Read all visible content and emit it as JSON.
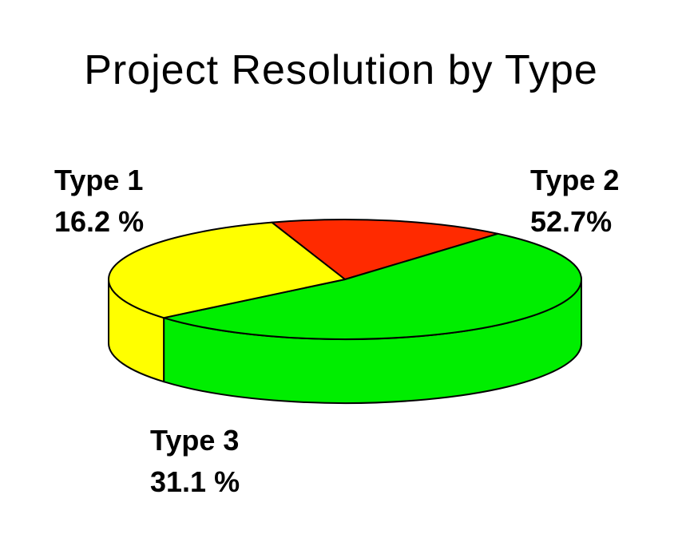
{
  "chart_data": {
    "type": "pie",
    "title": "Project Resolution by Type",
    "slices": [
      {
        "name": "Type 1",
        "value": 16.2,
        "value_label": "16.2 %",
        "color": "#ff2a00"
      },
      {
        "name": "Type 2",
        "value": 52.7,
        "value_label": "52.7%",
        "color": "#00ee00"
      },
      {
        "name": "Type 3",
        "value": 31.1,
        "value_label": "31.1 %",
        "color": "#ffff00"
      }
    ],
    "style": "3d",
    "legend": "none"
  }
}
